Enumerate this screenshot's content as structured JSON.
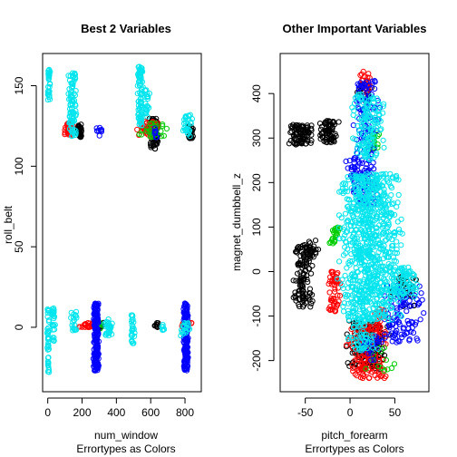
{
  "chart_data": [
    {
      "type": "scatter",
      "title": "Best 2 Variables",
      "xlabel": "num_window",
      "sublabel": "Errortypes as Colors",
      "ylabel": "roll_belt",
      "xlim": [
        -30,
        895
      ],
      "ylim": [
        -40,
        170
      ],
      "xticks": [
        "0",
        "200",
        "400",
        "600",
        "800"
      ],
      "xtick_values": [
        0,
        200,
        400,
        600,
        800
      ],
      "yticks": [
        "0",
        "50",
        "100",
        "150"
      ],
      "ytick_values": [
        0,
        50,
        100,
        150
      ],
      "point_style": "open-circle",
      "series": [
        {
          "color": "#000000",
          "clusters": [
            {
              "x": [
                170,
                200
              ],
              "y": [
                118,
                126
              ],
              "n": 40
            },
            {
              "x": [
                590,
                650
              ],
              "y": [
                110,
                130
              ],
              "n": 70
            },
            {
              "x": [
                820,
                850
              ],
              "y": [
                117,
                125
              ],
              "n": 25
            },
            {
              "x": [
                250,
                330
              ],
              "y": [
                -1,
                3
              ],
              "n": 30
            },
            {
              "x": [
                620,
                650
              ],
              "y": [
                0,
                3
              ],
              "n": 10
            }
          ]
        },
        {
          "color": "#ff0000",
          "clusters": [
            {
              "x": [
                90,
                150
              ],
              "y": [
                118,
                127
              ],
              "n": 30
            },
            {
              "x": [
                520,
                660
              ],
              "y": [
                118,
                128
              ],
              "n": 40
            },
            {
              "x": [
                180,
                300
              ],
              "y": [
                0,
                3
              ],
              "n": 25
            },
            {
              "x": [
                760,
                850
              ],
              "y": [
                0,
                3
              ],
              "n": 20
            }
          ]
        },
        {
          "color": "#00cd00",
          "clusters": [
            {
              "x": [
                520,
                700
              ],
              "y": [
                118,
                127
              ],
              "n": 30
            },
            {
              "x": [
                280,
                320
              ],
              "y": [
                -1,
                4
              ],
              "n": 10
            }
          ]
        },
        {
          "color": "#0000ff",
          "clusters": [
            {
              "x": [
                265,
                300
              ],
              "y": [
                -27,
                15
              ],
              "n": 200
            },
            {
              "x": [
                790,
                820
              ],
              "y": [
                -27,
                15
              ],
              "n": 160
            },
            {
              "x": [
                620,
                640
              ],
              "y": [
                118,
                124
              ],
              "n": 8
            },
            {
              "x": [
                270,
                320
              ],
              "y": [
                118,
                124
              ],
              "n": 10
            }
          ]
        },
        {
          "color": "#00e5ee",
          "clusters": [
            {
              "x": [
                0,
                15
              ],
              "y": [
                140,
                160
              ],
              "n": 30
            },
            {
              "x": [
                -5,
                10
              ],
              "y": [
                -28,
                12
              ],
              "n": 40
            },
            {
              "x": [
                20,
                45
              ],
              "y": [
                -10,
                12
              ],
              "n": 25
            },
            {
              "x": [
                110,
                170
              ],
              "y": [
                118,
                158
              ],
              "n": 90
            },
            {
              "x": [
                130,
                170
              ],
              "y": [
                -2,
                10
              ],
              "n": 20
            },
            {
              "x": [
                320,
                380
              ],
              "y": [
                -6,
                5
              ],
              "n": 30
            },
            {
              "x": [
                480,
                510
              ],
              "y": [
                -10,
                8
              ],
              "n": 25
            },
            {
              "x": [
                520,
                560
              ],
              "y": [
                125,
                162
              ],
              "n": 90
            },
            {
              "x": [
                560,
                600
              ],
              "y": [
                130,
                148
              ],
              "n": 20
            },
            {
              "x": [
                660,
                680
              ],
              "y": [
                -2,
                2
              ],
              "n": 6
            },
            {
              "x": [
                780,
                850
              ],
              "y": [
                118,
                132
              ],
              "n": 30
            },
            {
              "x": [
                770,
                840
              ],
              "y": [
                -6,
                3
              ],
              "n": 20
            }
          ]
        }
      ]
    },
    {
      "type": "scatter",
      "title": "Other Important Variables",
      "xlabel": "pitch_forearm",
      "sublabel": "Errortypes as Colors",
      "ylabel": "magnet_dumbbell_z",
      "xlim": [
        -78,
        88
      ],
      "ylim": [
        -270,
        490
      ],
      "xticks": [
        "-50",
        "0",
        "50"
      ],
      "xtick_values": [
        -50,
        0,
        50
      ],
      "yticks": [
        "-200",
        "-100",
        "0",
        "100",
        "200",
        "300",
        "400"
      ],
      "ytick_values": [
        -200,
        -100,
        0,
        100,
        200,
        300,
        400
      ],
      "point_style": "open-circle",
      "series": [
        {
          "color": "#000000",
          "clusters": [
            {
              "x": [
                -72,
                -40
              ],
              "y": [
                285,
                330
              ],
              "n": 90
            },
            {
              "x": [
                -35,
                -10
              ],
              "y": [
                290,
                340
              ],
              "n": 70
            },
            {
              "x": [
                -64,
                -40
              ],
              "y": [
                -80,
                60
              ],
              "n": 120
            },
            {
              "x": [
                -50,
                -35
              ],
              "y": [
                40,
                70
              ],
              "n": 20
            },
            {
              "x": [
                -5,
                45
              ],
              "y": [
                -220,
                -110
              ],
              "n": 180
            },
            {
              "x": [
                40,
                80
              ],
              "y": [
                -80,
                -10
              ],
              "n": 40
            },
            {
              "x": [
                5,
                30
              ],
              "y": [
                380,
                420
              ],
              "n": 20
            }
          ]
        },
        {
          "color": "#ff0000",
          "clusters": [
            {
              "x": [
                -25,
                -10
              ],
              "y": [
                -90,
                0
              ],
              "n": 50
            },
            {
              "x": [
                -5,
                45
              ],
              "y": [
                -240,
                -120
              ],
              "n": 140
            },
            {
              "x": [
                10,
                25
              ],
              "y": [
                400,
                450
              ],
              "n": 20
            },
            {
              "x": [
                25,
                45
              ],
              "y": [
                -140,
                -80
              ],
              "n": 20
            }
          ]
        },
        {
          "color": "#00cd00",
          "clusters": [
            {
              "x": [
                -25,
                -10
              ],
              "y": [
                60,
                100
              ],
              "n": 25
            },
            {
              "x": [
                15,
                35
              ],
              "y": [
                270,
                310
              ],
              "n": 20
            },
            {
              "x": [
                10,
                60
              ],
              "y": [
                -240,
                -160
              ],
              "n": 15
            }
          ]
        },
        {
          "color": "#0000ff",
          "clusters": [
            {
              "x": [
                0,
                35
              ],
              "y": [
                150,
                430
              ],
              "n": 160
            },
            {
              "x": [
                35,
                85
              ],
              "y": [
                -160,
                -30
              ],
              "n": 100
            },
            {
              "x": [
                10,
                40
              ],
              "y": [
                -200,
                -140
              ],
              "n": 30
            },
            {
              "x": [
                -5,
                20
              ],
              "y": [
                200,
                260
              ],
              "n": 30
            }
          ]
        },
        {
          "color": "#00e5ee",
          "clusters": [
            {
              "x": [
                -15,
                60
              ],
              "y": [
                -110,
                220
              ],
              "n": 800
            },
            {
              "x": [
                0,
                40
              ],
              "y": [
                250,
                400
              ],
              "n": 140
            },
            {
              "x": [
                40,
                80
              ],
              "y": [
                -60,
                10
              ],
              "n": 80
            },
            {
              "x": [
                -5,
                35
              ],
              "y": [
                -180,
                -100
              ],
              "n": 60
            }
          ]
        }
      ]
    }
  ]
}
